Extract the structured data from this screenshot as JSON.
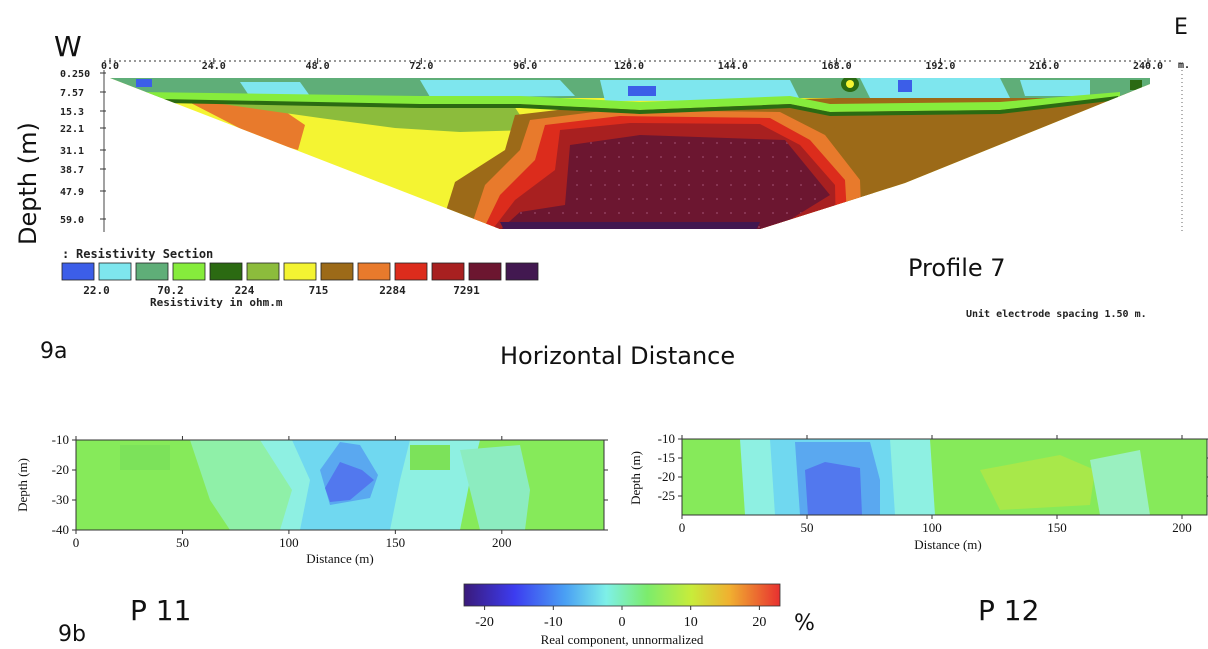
{
  "figure": {
    "panel_a_label": "9a",
    "panel_b_label": "9b",
    "west_label": "W",
    "east_label": "E",
    "depth_axis_label": "Depth (m)",
    "horizontal_axis_label": "Horizontal Distance",
    "percent_unit": "%"
  },
  "chart_data": [
    {
      "type": "heatmap",
      "title": "Profile 7",
      "section_title": "Resistivity Section",
      "legend_title": "Resistivity in ohm.m",
      "note": "Unit electrode spacing 1.50 m.",
      "xlabel": "Horizontal Distance",
      "ylabel": "Depth (m)",
      "x_ticks": [
        "0.0",
        "24.0",
        "48.0",
        "72.0",
        "96.0",
        "120.0",
        "144.0",
        "168.0",
        "192.0",
        "216.0",
        "240.0"
      ],
      "x_unit": "m.",
      "x_range": [
        0,
        240
      ],
      "depth_ticks": [
        "0.250",
        "7.57",
        "15.3",
        "22.1",
        "31.1",
        "38.7",
        "47.9",
        "59.0"
      ],
      "depth_range": [
        0.25,
        59.0
      ],
      "legend_labels": [
        "22.0",
        "70.2",
        "224",
        "715",
        "2284",
        "7291"
      ],
      "legend_colors": [
        "#3c5ee8",
        "#7ee6ee",
        "#5fae78",
        "#86ec3c",
        "#2b6a12",
        "#8cbc3c",
        "#f4f432",
        "#9c6a18",
        "#e87a2c",
        "#dc2c1c",
        "#a82020",
        "#6c1630",
        "#421850"
      ],
      "features": [
        {
          "layer": "near-surface low resistivity",
          "x_range": [
            0,
            250
          ],
          "depth_range": [
            0.25,
            12
          ],
          "resistivity_ohm_m": [
            22,
            224
          ]
        },
        {
          "layer": "high resistivity body",
          "x_range": [
            96,
            168
          ],
          "depth_range": [
            15,
            59
          ],
          "resistivity_ohm_m": [
            2284,
            7291
          ]
        },
        {
          "layer": "intermediate layer",
          "x_range": [
            10,
            230
          ],
          "depth_range": [
            12,
            50
          ],
          "resistivity_ohm_m": [
            224,
            715
          ]
        }
      ]
    },
    {
      "type": "heatmap",
      "title": "P 11",
      "xlabel": "Distance (m)",
      "ylabel": "Depth (m)",
      "x_ticks": [
        "0",
        "50",
        "100",
        "150",
        "200"
      ],
      "y_ticks": [
        "-10",
        "-20",
        "-30",
        "-40"
      ],
      "xlim": [
        0,
        248
      ],
      "ylim": [
        -40,
        -10
      ],
      "features": [
        {
          "anomaly": "low",
          "x_center": 125,
          "y_center": -22,
          "value_percent": -15
        },
        {
          "anomaly": "background",
          "value_percent": 6
        }
      ]
    },
    {
      "type": "heatmap",
      "title": "P 12",
      "xlabel": "Distance (m)",
      "ylabel": "Depth (m)",
      "x_ticks": [
        "0",
        "50",
        "100",
        "150",
        "200"
      ],
      "y_ticks": [
        "-10",
        "-15",
        "-20",
        "-25"
      ],
      "xlim": [
        0,
        210
      ],
      "ylim": [
        -30,
        -10
      ],
      "features": [
        {
          "anomaly": "low",
          "x_center": 60,
          "y_center": -24,
          "value_percent": -18
        },
        {
          "anomaly": "background",
          "value_percent": 8
        }
      ]
    },
    {
      "type": "colorbar",
      "label": "Real component, unnormalized",
      "ticks": [
        "-20",
        "-10",
        "0",
        "10",
        "20"
      ],
      "range": [
        -23,
        23
      ],
      "unit": "%"
    }
  ]
}
